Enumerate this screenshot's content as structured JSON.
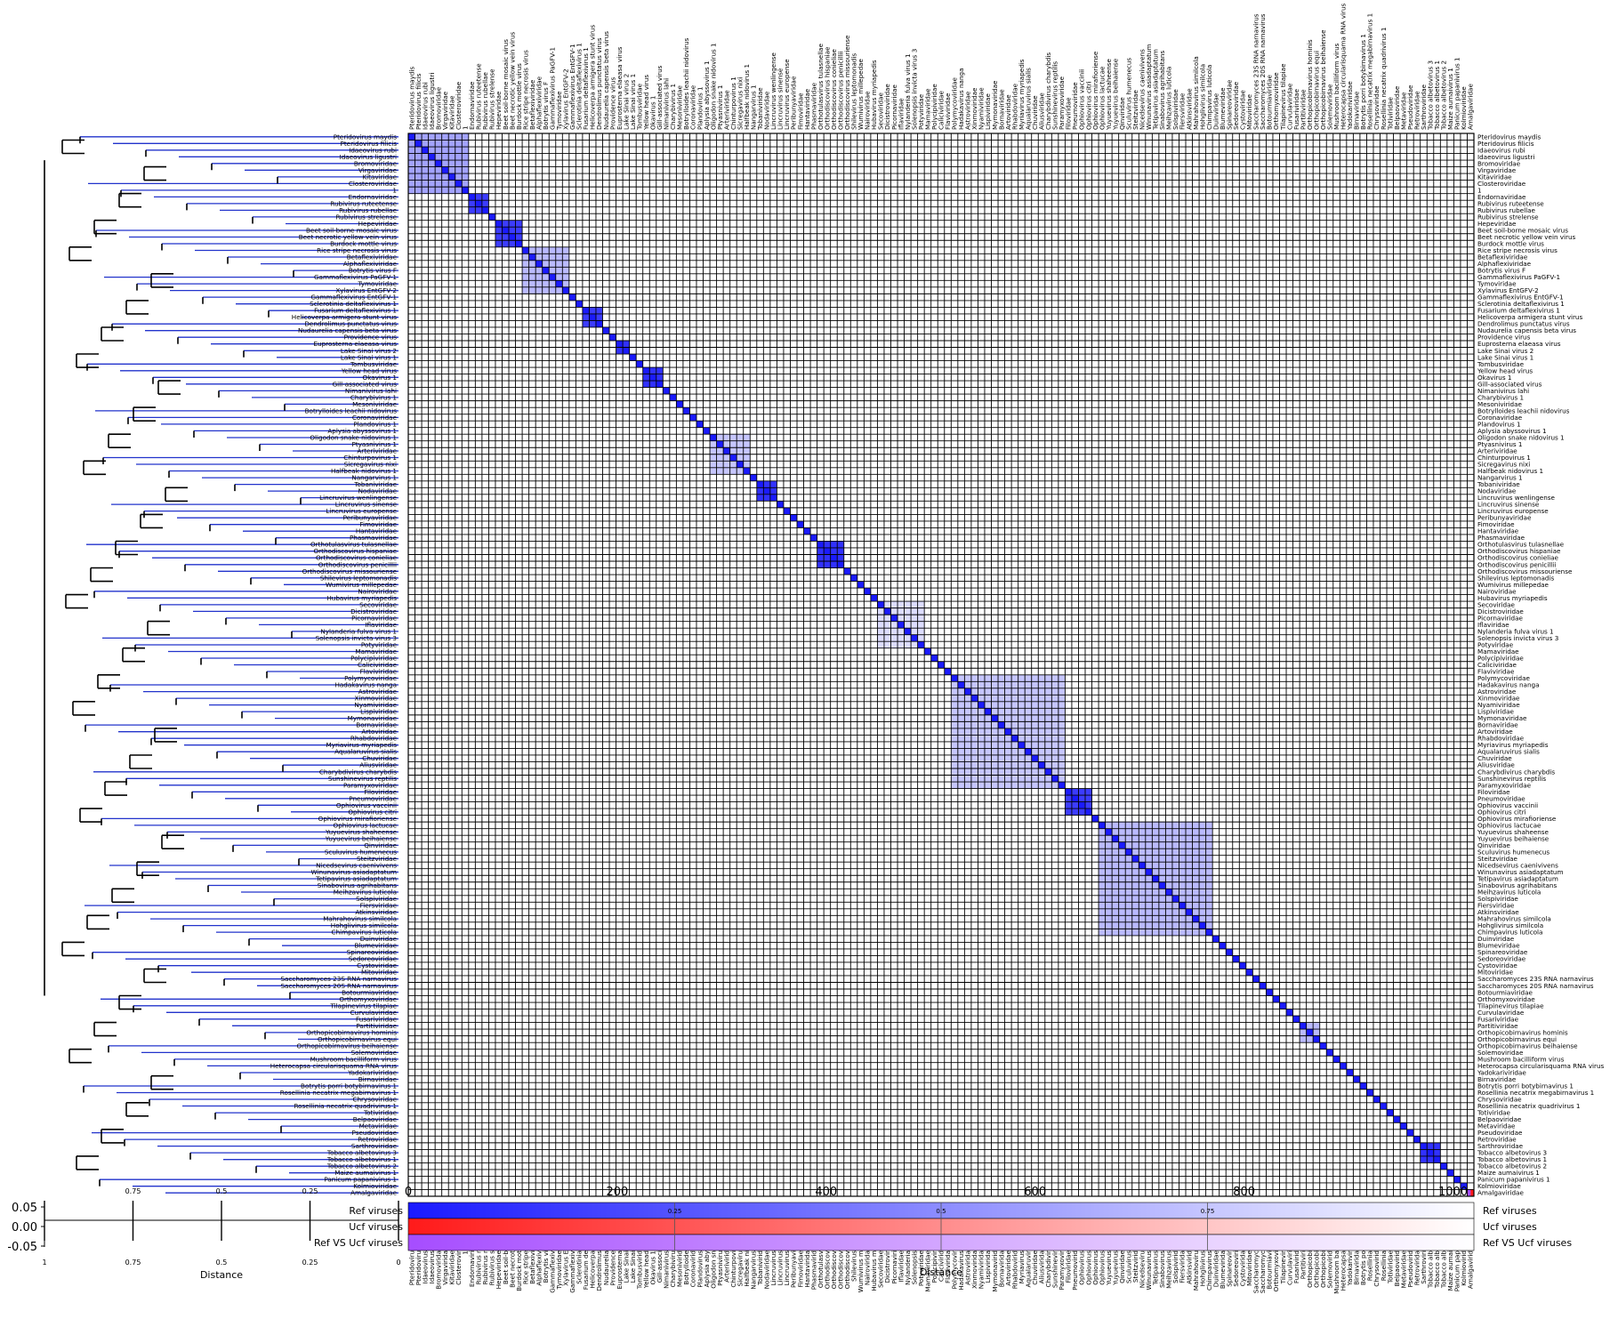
{
  "chart_data": {
    "type": "heatmap",
    "description_labels": {
      "xlabel": "Distance",
      "colorbar_label": "Distance",
      "legend": [
        "Ref viruses",
        "Ucf viruses",
        "Ref VS Ucf viruses"
      ]
    },
    "colors": {
      "ref": "#1a1aff",
      "ucf": "#ff1a1a",
      "refvsucf": "#a64dff",
      "tree_ref": "#2233cc",
      "tree_internal": "#000000",
      "grid": "#000000"
    },
    "colorbar": {
      "ticks": [
        0.25,
        0.5,
        0.75
      ],
      "range": [
        0,
        1
      ]
    },
    "dendrogram_axis": {
      "ticks": [
        "1",
        "0.75",
        "0.5",
        "0.25",
        "0"
      ],
      "top_ticks": [
        "0.75",
        "0.5",
        "0.25"
      ]
    },
    "index_axis": {
      "ticks": [
        "0",
        "200",
        "400",
        "600",
        "800",
        "1000"
      ],
      "max": 1020
    },
    "track_axis": {
      "ticks": [
        "0.05",
        "0.00",
        "-0.05"
      ]
    },
    "labels": [
      "Pteridovirus maydis",
      "Pteridovirus filicis",
      "Idaeovirus rubi",
      "Idaeovirus ligustri",
      "Bromoviridae",
      "Virgaviridae",
      "Kitaviridae",
      "Closteroviridae",
      "1",
      "Endornaviridae",
      "Rubivirus ruteetense",
      "Rubivirus rubellae",
      "Rubivirus strelense",
      "Hepeviridae",
      "Beet soil-borne mosaic virus",
      "Beet necrotic yellow vein virus",
      "Burdock mottle virus",
      "Rice stripe necrosis virus",
      "Betaflexiviridae",
      "Alphaflexiviridae",
      "Botrytis virus F",
      "Gammaflexivirus PaGFV-1",
      "Tymoviridae",
      "Xylavirus EntGFV-2",
      "Gammaflexivirus EntGFV-1",
      "Sclerotinia deltaflexivirus 1",
      "Fusarium deltaflexivirus 1",
      "Helicoverpa armigera stunt virus",
      "Dendrolimus punctatus virus",
      "Nudaurelia capensis beta virus",
      "Providence virus",
      "Euprosterna elaeasa virus",
      "Lake Sinai virus 2",
      "Lake Sinai virus 1",
      "Tombusviridae",
      "Yellow head virus",
      "Okavirus 1",
      "Gill-associated virus",
      "Nimanivirus lahi",
      "Charybivirus 1",
      "Mesoniviridae",
      "Botrylloides leachii nidovirus",
      "Coronaviridae",
      "Plandovirus 1",
      "Aplysia abyssovirus 1",
      "Oligodon snake nidovirus 1",
      "Ptyasnivirus 1",
      "Arteriviridae",
      "Chinturpovirus 1",
      "Sicregavirus nixi",
      "Halfbeak nidovirus 1",
      "Nangarvirus 1",
      "Tobaniviridae",
      "Nodaviridae",
      "Lincruvirus wenlingense",
      "Lincruvirus sinense",
      "Lincruvirus europense",
      "Peribunyaviridae",
      "Fimoviridae",
      "Hantaviridae",
      "Phasmaviridae",
      "Orthotulasvirus tulasnellae",
      "Orthodiscovirus hispaniae",
      "Orthodiscovirus conieliae",
      "Orthodiscovirus penicillii",
      "Orthodiscovirus missouriense",
      "Shilevirus leptomonadis",
      "Wumivirus millepedae",
      "Nairoviridae",
      "Hubavirus myriapedis",
      "Secoviridae",
      "Dicistroviridae",
      "Picornaviridae",
      "Iflaviridae",
      "Nylanderia fulva virus 1",
      "Solenopsis invicta virus 3",
      "Potyviridae",
      "Mamaviridae",
      "Polycipiviridae",
      "Caliciviridae",
      "Flaviviridae",
      "Polymycoviridae",
      "Hadakavirus nanga",
      "Astroviridae",
      "Xinmoviridae",
      "Nyamiviridae",
      "Lispiviridae",
      "Mymonaviridae",
      "Bornaviridae",
      "Artoviridae",
      "Rhabdoviridae",
      "Myriavirus myriapedis",
      "Aqualaruvirus sialis",
      "Chuviridae",
      "Aliusviridae",
      "Charybdivirus charybdis",
      "Sunshinevirus reptilis",
      "Paramyxoviridae",
      "Filoviridae",
      "Pneumoviridae",
      "Ophiovirus vaccinii",
      "Ophiovirus citri",
      "Ophiovirus mirafioriense",
      "Ophiovirus lactucae",
      "Yuyuevirus shaheense",
      "Yuyuevirus beihaiense",
      "Qinviridae",
      "Sculuvirus humenecus",
      "Steitzviridae",
      "Nicedsevirus caenivivens",
      "Winunavirus asiadaptatum",
      "Tetipavirus asiadaptatum",
      "Sinabovirus agrihabitans",
      "Meihzavirus luticola",
      "Solspiviridae",
      "Fiersviridae",
      "Atkinsviridae",
      "Mahrahovirus similcola",
      "Hohglivirus similcola",
      "Chimpavirus luticola",
      "Duinviridae",
      "Blumeviridae",
      "Spinareoviridae",
      "Sedoreoviridae",
      "Cystoviridae",
      "Mitoviridae",
      "Saccharomyces 23S RNA narnavirus",
      "Saccharomyces 20S RNA narnavirus",
      "Botourmiaviridae",
      "Orthomyxoviridae",
      "Tilapinevirus tilapiae",
      "Curvulaviridae",
      "Fusariviridae",
      "Partitiviridae",
      "Orthopicobirnavirus hominis",
      "Orthopicobirnavirus equi",
      "Orthopicobirnavirus beihaiense",
      "Solemoviridae",
      "Mushroom bacilliform virus",
      "Heterocapsa circularisquama RNA virus",
      "Yadokariviridae",
      "Birnaviridae",
      "Botrytis porri botybirnavirus 1",
      "Rosellinia necatrix megabirnavirus 1",
      "Chrysoviridae",
      "Rosellinia necatrix quadrivirus 1",
      "Totiviridae",
      "Belpaoviridae",
      "Metaviridae",
      "Pseudoviridae",
      "Retroviridae",
      "Sarthroviridae",
      "Tobacco albetovirus 3",
      "Tobacco albetovirus 1",
      "Tobacco albetovirus 2",
      "Maize aumaivirus 1",
      "Panicum papanivirus 1",
      "Kolmioviridae",
      "Amalgaviridae"
    ],
    "groups": [
      {
        "start": 0,
        "end": 8,
        "level": 0.4
      },
      {
        "start": 9,
        "end": 11,
        "level": 0.85
      },
      {
        "start": 13,
        "end": 16,
        "level": 0.85
      },
      {
        "start": 17,
        "end": 23,
        "level": 0.3
      },
      {
        "start": 26,
        "end": 28,
        "level": 0.85
      },
      {
        "start": 31,
        "end": 32,
        "level": 0.9
      },
      {
        "start": 35,
        "end": 37,
        "level": 0.9
      },
      {
        "start": 45,
        "end": 50,
        "level": 0.25
      },
      {
        "start": 52,
        "end": 54,
        "level": 0.9
      },
      {
        "start": 61,
        "end": 64,
        "level": 0.9
      },
      {
        "start": 70,
        "end": 76,
        "level": 0.15
      },
      {
        "start": 81,
        "end": 97,
        "level": 0.25
      },
      {
        "start": 98,
        "end": 101,
        "level": 0.85
      },
      {
        "start": 103,
        "end": 119,
        "level": 0.3
      },
      {
        "start": 133,
        "end": 135,
        "level": 0.3
      },
      {
        "start": 151,
        "end": 153,
        "level": 0.9
      }
    ],
    "ucf_cell": {
      "row": 158,
      "col": 158,
      "value": 1.0
    }
  }
}
